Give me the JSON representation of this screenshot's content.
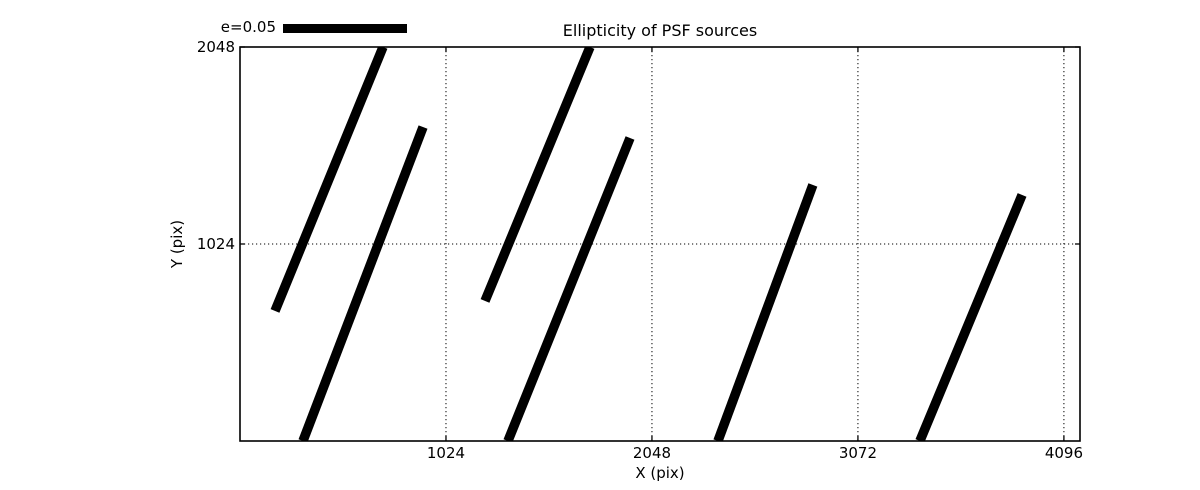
{
  "chart_data": {
    "type": "line",
    "subtype": "psf-ellipticity-whisker-plot",
    "title": "Ellipticity of PSF sources",
    "xlabel": "X (pix)",
    "ylabel": "Y (pix)",
    "xlim": [
      0,
      4176
    ],
    "ylim": [
      0,
      2048
    ],
    "x_ticks": [
      "1024",
      "2048",
      "3072",
      "4096"
    ],
    "x_tick_values": [
      1024,
      2048,
      3072,
      4096
    ],
    "y_ticks": [
      "1024",
      "2048"
    ],
    "y_tick_values": [
      1024,
      2048
    ],
    "grid": true,
    "grid_style": "dotted",
    "legend_label": "e=0.05",
    "legend_position": "upper left, above axes",
    "foreground_color": "#000000",
    "background_color": "#ffffff",
    "series": [
      {
        "name": "psf-ellipticity-whiskers",
        "segments": [
          {
            "x1": 174,
            "y1": 676,
            "x2": 711,
            "y2": 2048
          },
          {
            "x1": 313,
            "y1": 0,
            "x2": 910,
            "y2": 1632
          },
          {
            "x1": 1218,
            "y1": 728,
            "x2": 1740,
            "y2": 2048
          },
          {
            "x1": 1332,
            "y1": 0,
            "x2": 1939,
            "y2": 1575
          },
          {
            "x1": 2376,
            "y1": 0,
            "x2": 2848,
            "y2": 1331
          },
          {
            "x1": 3380,
            "y1": 0,
            "x2": 3888,
            "y2": 1279
          }
        ]
      }
    ]
  }
}
